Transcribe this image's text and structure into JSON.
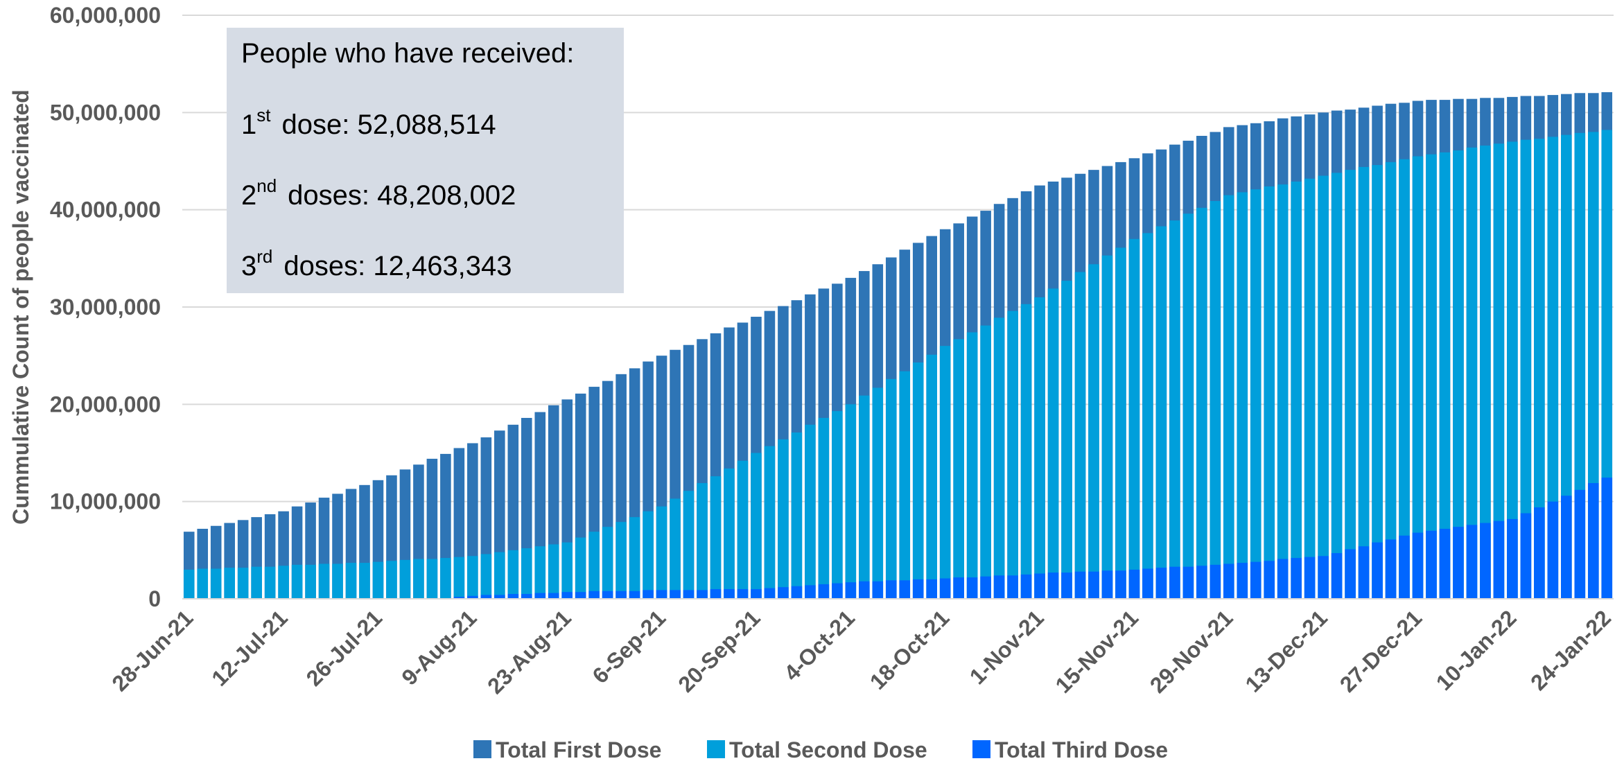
{
  "chart_data": {
    "type": "bar",
    "y_axis_label": "Cummulative Count of people vaccinated",
    "annotation": {
      "heading": "People who have received:",
      "lines": [
        [
          "1",
          "st",
          "dose: 52,088,514"
        ],
        [
          "2",
          "nd",
          "doses: 48,208,002"
        ],
        [
          "3",
          "rd",
          "doses: 12,463,343"
        ]
      ]
    },
    "categories": [
      "28-Jun-21",
      null,
      null,
      null,
      null,
      null,
      null,
      "12-Jul-21",
      null,
      null,
      null,
      null,
      null,
      null,
      "26-Jul-21",
      null,
      null,
      null,
      null,
      null,
      null,
      "9-Aug-21",
      null,
      null,
      null,
      null,
      null,
      null,
      "23-Aug-21",
      null,
      null,
      null,
      null,
      null,
      null,
      "6-Sep-21",
      null,
      null,
      null,
      null,
      null,
      null,
      "20-Sep-21",
      null,
      null,
      null,
      null,
      null,
      null,
      "4-Oct-21",
      null,
      null,
      null,
      null,
      null,
      null,
      "18-Oct-21",
      null,
      null,
      null,
      null,
      null,
      null,
      "1-Nov-21",
      null,
      null,
      null,
      null,
      null,
      null,
      "15-Nov-21",
      null,
      null,
      null,
      null,
      null,
      null,
      "29-Nov-21",
      null,
      null,
      null,
      null,
      null,
      null,
      "13-Dec-21",
      null,
      null,
      null,
      null,
      null,
      null,
      "27-Dec-21",
      null,
      null,
      null,
      null,
      null,
      null,
      "10-Jan-22",
      null,
      null,
      null,
      null,
      null,
      null,
      "24-Jan-22"
    ],
    "series": [
      {
        "name": "Total First Dose",
        "color": "#2e75b6",
        "values": [
          6900000,
          7200000,
          7500000,
          7800000,
          8100000,
          8400000,
          8700000,
          9000000,
          9500000,
          9900000,
          10400000,
          10800000,
          11300000,
          11700000,
          12200000,
          12700000,
          13300000,
          13800000,
          14400000,
          14900000,
          15500000,
          16000000,
          16600000,
          17300000,
          17900000,
          18600000,
          19200000,
          19900000,
          20500000,
          21100000,
          21800000,
          22400000,
          23100000,
          23700000,
          24400000,
          25000000,
          25600000,
          26100000,
          26700000,
          27300000,
          27900000,
          28400000,
          29000000,
          29600000,
          30100000,
          30700000,
          31300000,
          31900000,
          32400000,
          33000000,
          33700000,
          34400000,
          35100000,
          35900000,
          36600000,
          37300000,
          38000000,
          38600000,
          39300000,
          39900000,
          40600000,
          41200000,
          41900000,
          42500000,
          42900000,
          43300000,
          43700000,
          44100000,
          44500000,
          44900000,
          45300000,
          45800000,
          46200000,
          46700000,
          47100000,
          47600000,
          48000000,
          48500000,
          48700000,
          48900000,
          49100000,
          49400000,
          49600000,
          49800000,
          50000000,
          50200000,
          50300000,
          50500000,
          50700000,
          50900000,
          51000000,
          51200000,
          51300000,
          51300000,
          51400000,
          51400000,
          51500000,
          51500000,
          51600000,
          51700000,
          51700000,
          51800000,
          51900000,
          52000000,
          52000000,
          52088514
        ]
      },
      {
        "name": "Total Second Dose",
        "color": "#009fdb",
        "values": [
          3000000,
          3100000,
          3100000,
          3200000,
          3200000,
          3300000,
          3300000,
          3400000,
          3500000,
          3500000,
          3600000,
          3600000,
          3700000,
          3700000,
          3800000,
          3900000,
          4000000,
          4100000,
          4100000,
          4200000,
          4300000,
          4400000,
          4600000,
          4800000,
          5000000,
          5200000,
          5400000,
          5600000,
          5800000,
          6300000,
          6900000,
          7400000,
          7900000,
          8400000,
          9000000,
          9500000,
          10300000,
          11100000,
          11900000,
          12600000,
          13400000,
          14200000,
          15000000,
          15700000,
          16400000,
          17100000,
          17900000,
          18600000,
          19300000,
          20000000,
          20900000,
          21700000,
          22600000,
          23400000,
          24300000,
          25100000,
          26000000,
          26700000,
          27400000,
          28100000,
          28900000,
          29600000,
          30300000,
          31000000,
          31900000,
          32700000,
          33600000,
          34400000,
          35300000,
          36100000,
          37000000,
          37600000,
          38300000,
          38900000,
          39600000,
          40200000,
          40900000,
          41500000,
          41800000,
          42100000,
          42400000,
          42600000,
          42900000,
          43200000,
          43500000,
          43800000,
          44100000,
          44400000,
          44600000,
          44900000,
          45200000,
          45500000,
          45700000,
          45900000,
          46100000,
          46400000,
          46600000,
          46800000,
          47000000,
          47200000,
          47300000,
          47500000,
          47700000,
          47900000,
          48000000,
          48208002
        ]
      },
      {
        "name": "Total Third Dose",
        "color": "#0066ff",
        "values": [
          null,
          null,
          null,
          null,
          null,
          null,
          null,
          null,
          null,
          null,
          null,
          null,
          null,
          null,
          null,
          null,
          null,
          null,
          null,
          null,
          200000,
          300000,
          400000,
          400000,
          500000,
          500000,
          600000,
          600000,
          700000,
          700000,
          800000,
          800000,
          800000,
          800000,
          900000,
          900000,
          900000,
          900000,
          900000,
          1000000,
          1000000,
          1000000,
          1000000,
          1100000,
          1200000,
          1300000,
          1400000,
          1500000,
          1600000,
          1700000,
          1800000,
          1800000,
          1900000,
          1900000,
          2000000,
          2000000,
          2100000,
          2200000,
          2200000,
          2300000,
          2400000,
          2400000,
          2500000,
          2600000,
          2700000,
          2700000,
          2800000,
          2800000,
          2900000,
          2900000,
          3000000,
          3100000,
          3200000,
          3300000,
          3300000,
          3400000,
          3500000,
          3600000,
          3700000,
          3800000,
          3900000,
          4100000,
          4200000,
          4300000,
          4400000,
          4700000,
          5100000,
          5400000,
          5800000,
          6100000,
          6500000,
          6800000,
          7000000,
          7200000,
          7400000,
          7600000,
          7800000,
          8000000,
          8200000,
          8800000,
          9400000,
          10000000,
          10600000,
          11200000,
          11900000,
          12463343
        ]
      }
    ],
    "ylim": [
      0,
      60000000
    ],
    "yticks": [
      0,
      {
        "value": 10000000,
        "label": "10,000,000"
      },
      {
        "value": 20000000,
        "label": "20,000,000"
      },
      {
        "value": 30000000,
        "label": "30,000,000"
      },
      {
        "value": 40000000,
        "label": "40,000,000"
      },
      {
        "value": 50000000,
        "label": "50,000,000"
      },
      {
        "value": 60000000,
        "label": "60,000,000"
      }
    ],
    "grid": true
  }
}
